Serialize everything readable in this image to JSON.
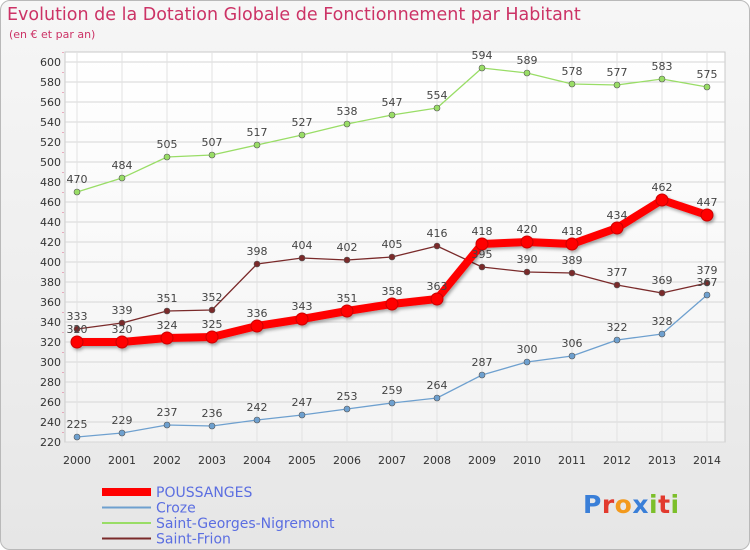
{
  "title": "Evolution de la Dotation Globale de Fonctionnement par Habitant",
  "subtitle": "(en € et par an)",
  "logo": {
    "letters": [
      {
        "ch": "P",
        "color": "#3a7fd8"
      },
      {
        "ch": "r",
        "color": "#e23a2e"
      },
      {
        "ch": "o",
        "color": "#f39a1d"
      },
      {
        "ch": "x",
        "color": "#3a7fd8"
      },
      {
        "ch": "i",
        "color": "#7cbf2a"
      },
      {
        "ch": "t",
        "color": "#e23a2e"
      },
      {
        "ch": "i",
        "color": "#7cbf2a"
      }
    ]
  },
  "chart_data": {
    "type": "line",
    "title": "Evolution de la Dotation Globale de Fonctionnement par Habitant",
    "subtitle": "(en € et par an)",
    "x": [
      "2000",
      "2001",
      "2002",
      "2003",
      "2004",
      "2005",
      "2006",
      "2007",
      "2008",
      "2009",
      "2010",
      "2011",
      "2012",
      "2013",
      "2014"
    ],
    "ylim": [
      220,
      600
    ],
    "yticks": [
      220,
      240,
      260,
      280,
      300,
      320,
      340,
      360,
      380,
      400,
      420,
      440,
      460,
      480,
      500,
      520,
      540,
      560,
      580,
      600
    ],
    "grid": true,
    "legend_position": "bottom-left",
    "series": [
      {
        "name": "POUSSANGES",
        "color": "#ff0000",
        "bold": true,
        "values": [
          320,
          320,
          324,
          325,
          336,
          343,
          351,
          358,
          363,
          418,
          420,
          418,
          434,
          462,
          447
        ]
      },
      {
        "name": "Croze",
        "color": "#6ea0cf",
        "values": [
          225,
          229,
          237,
          236,
          242,
          247,
          253,
          259,
          264,
          287,
          300,
          306,
          322,
          328,
          367
        ]
      },
      {
        "name": "Saint-Georges-Nigremont",
        "color": "#99dd66",
        "values": [
          470,
          484,
          505,
          507,
          517,
          527,
          538,
          547,
          554,
          594,
          589,
          578,
          577,
          583,
          575
        ]
      },
      {
        "name": "Saint-Frion",
        "color": "#7a2a2a",
        "values": [
          333,
          339,
          351,
          352,
          398,
          404,
          402,
          405,
          416,
          395,
          390,
          389,
          377,
          369,
          379
        ]
      }
    ]
  }
}
